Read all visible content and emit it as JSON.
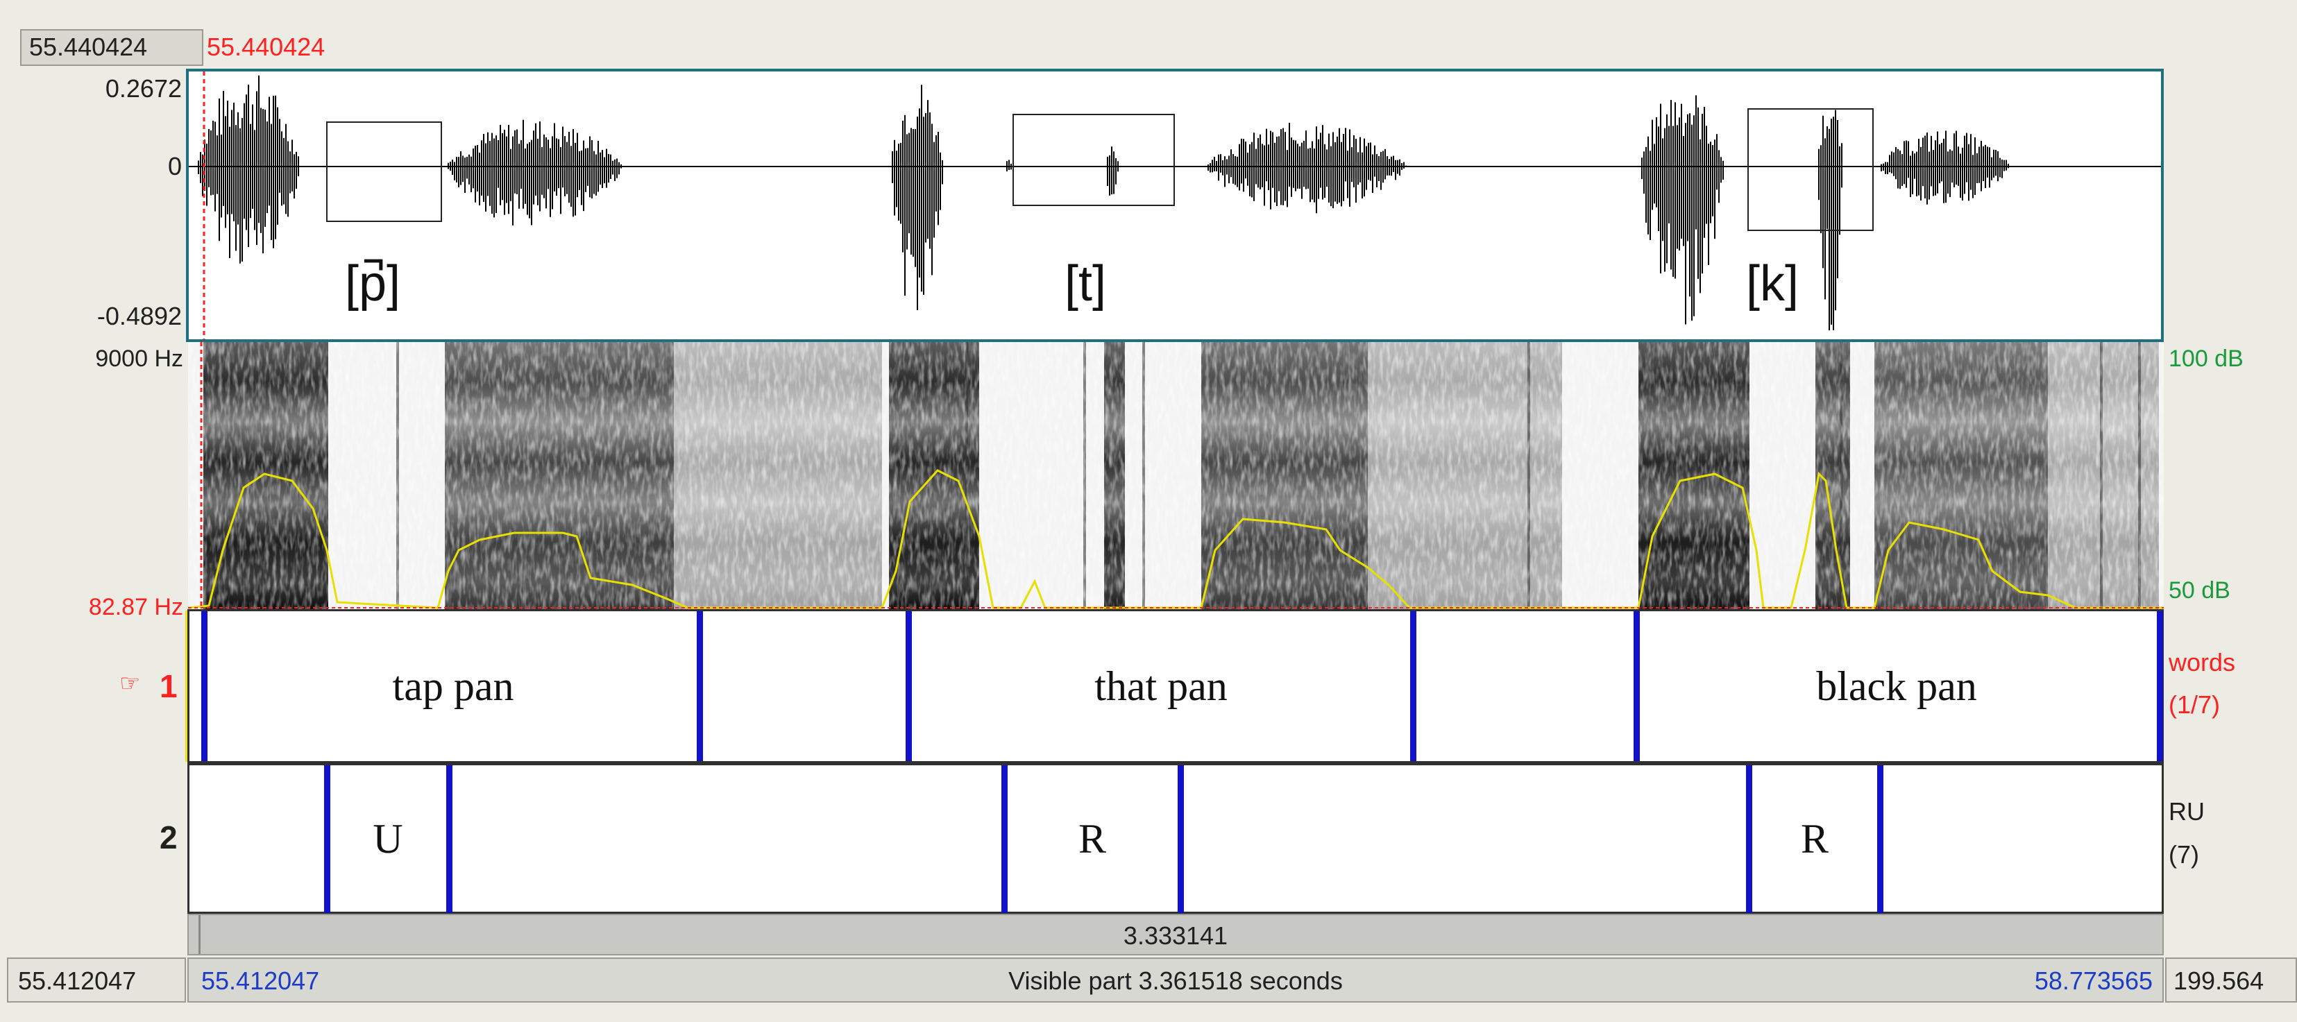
{
  "cursor": {
    "time_left": "55.440424",
    "time_right": "55.440424"
  },
  "waveform": {
    "amp_max": "0.2672",
    "amp_zero": "0",
    "amp_min": "-0.4892",
    "annotations": [
      "[p̚]",
      "[t]",
      "[k]"
    ]
  },
  "spectrogram": {
    "freq_top": "9000 Hz",
    "freq_bottom": "82.87 Hz",
    "intensity_top": "100 dB",
    "intensity_bottom": "50 dB"
  },
  "tiers": [
    {
      "number": "1",
      "name": "words",
      "count": "(1/7)",
      "intervals": [
        "tap pan",
        "that pan",
        "black pan"
      ]
    },
    {
      "number": "2",
      "name": "RU",
      "count": "(7)",
      "intervals": [
        "U",
        "R",
        "R"
      ]
    }
  ],
  "selection": {
    "duration": "3.333141"
  },
  "visible": {
    "start": "55.412047",
    "label": "Visible part 3.361518 seconds",
    "end": "58.773565",
    "total_left": "55.412047",
    "total_right": "199.564"
  },
  "colors": {
    "boundary": "#1212c8",
    "cursor": "#ff2020",
    "intensity_curve": "#e8e000",
    "selected_tier": "#f0e020"
  },
  "icons": {
    "tier_pointer": "pointing-hand-icon"
  }
}
